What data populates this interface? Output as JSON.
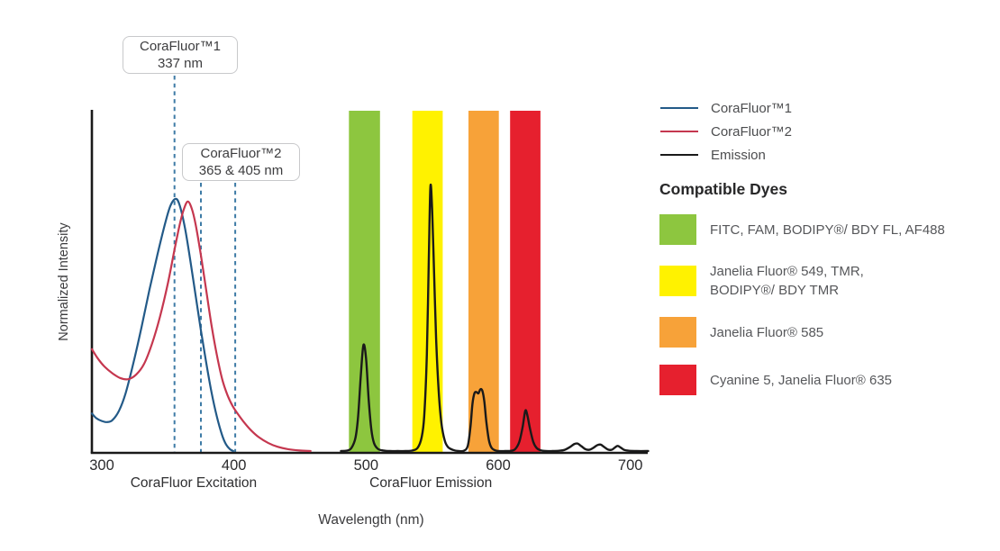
{
  "chart_data": {
    "type": "line",
    "title": "",
    "xlabel": "Wavelength (nm)",
    "ylabel": "Normalized Intensity",
    "x_ticks": [
      300,
      400,
      500,
      600,
      700
    ],
    "x_axis_extent_nm": [
      292.5,
      714
    ],
    "ylim": [
      0,
      1
    ],
    "grid": false,
    "legend_position": "right",
    "x_section_labels": [
      {
        "text": "CoraFluor Excitation",
        "center_nm": 369.5
      },
      {
        "text": "CoraFluor Emission",
        "center_nm": 549
      }
    ],
    "markers": [
      {
        "label": "337 nm",
        "wavelength_nm": 337,
        "drawn_nm": 355,
        "callout": 1
      },
      {
        "label": "365 nm",
        "wavelength_nm": 365,
        "drawn_nm": 375,
        "callout": 2
      },
      {
        "label": "405 nm",
        "wavelength_nm": 405,
        "drawn_nm": 401,
        "callout": 2
      }
    ],
    "marker_line_color": "#3e7ba6",
    "emission_filter_bands": [
      {
        "name": "green",
        "color": "#8dc63f",
        "nm_range": [
          487,
          510.5
        ]
      },
      {
        "name": "yellow",
        "color": "#fff200",
        "nm_range": [
          535,
          558
        ]
      },
      {
        "name": "orange",
        "color": "#f7a239",
        "nm_range": [
          577.5,
          600.5
        ]
      },
      {
        "name": "red",
        "color": "#e6202e",
        "nm_range": [
          609,
          632
        ]
      }
    ],
    "series": [
      {
        "name": "CoraFluor™1 excitation",
        "color": "#235a88",
        "width": 2.2,
        "points": [
          [
            292.5,
            0.14
          ],
          [
            296,
            0.122
          ],
          [
            300,
            0.112
          ],
          [
            304,
            0.108
          ],
          [
            308,
            0.115
          ],
          [
            313,
            0.15
          ],
          [
            318,
            0.215
          ],
          [
            324,
            0.33
          ],
          [
            330,
            0.46
          ],
          [
            336,
            0.6
          ],
          [
            342,
            0.73
          ],
          [
            348,
            0.85
          ],
          [
            352,
            0.915
          ],
          [
            356,
            0.94
          ],
          [
            359,
            0.915
          ],
          [
            363,
            0.83
          ],
          [
            367,
            0.71
          ],
          [
            371,
            0.58
          ],
          [
            375,
            0.45
          ],
          [
            379,
            0.33
          ],
          [
            383,
            0.22
          ],
          [
            387,
            0.13
          ],
          [
            391,
            0.06
          ],
          [
            394,
            0.025
          ],
          [
            397,
            0.007
          ],
          [
            399.5,
            0
          ]
        ]
      },
      {
        "name": "CoraFluor™2 excitation",
        "color": "#c5374f",
        "width": 2.2,
        "points": [
          [
            292.5,
            0.38
          ],
          [
            297,
            0.345
          ],
          [
            302,
            0.315
          ],
          [
            308,
            0.29
          ],
          [
            314,
            0.272
          ],
          [
            320,
            0.268
          ],
          [
            326,
            0.285
          ],
          [
            332,
            0.325
          ],
          [
            338,
            0.4
          ],
          [
            344,
            0.5
          ],
          [
            350,
            0.625
          ],
          [
            355,
            0.75
          ],
          [
            359,
            0.845
          ],
          [
            362,
            0.9
          ],
          [
            365,
            0.93
          ],
          [
            368,
            0.905
          ],
          [
            371,
            0.845
          ],
          [
            375,
            0.73
          ],
          [
            379,
            0.6
          ],
          [
            383,
            0.47
          ],
          [
            387,
            0.36
          ],
          [
            391,
            0.27
          ],
          [
            395,
            0.21
          ],
          [
            399,
            0.168
          ],
          [
            403,
            0.138
          ],
          [
            408,
            0.105
          ],
          [
            413,
            0.077
          ],
          [
            419,
            0.051
          ],
          [
            426,
            0.03
          ],
          [
            433,
            0.016
          ],
          [
            441,
            0.007
          ],
          [
            450,
            0.002
          ],
          [
            458,
            0
          ]
        ]
      },
      {
        "name": "Emission",
        "color": "#1a1a1a",
        "width": 2.4,
        "points": [
          [
            481,
            0
          ],
          [
            486,
            0.002
          ],
          [
            489,
            0.012
          ],
          [
            492,
            0.05
          ],
          [
            494,
            0.13
          ],
          [
            496,
            0.28
          ],
          [
            498,
            0.395
          ],
          [
            500,
            0.345
          ],
          [
            502,
            0.19
          ],
          [
            504,
            0.08
          ],
          [
            506,
            0.03
          ],
          [
            509,
            0.008
          ],
          [
            513,
            0.002
          ],
          [
            518,
            0
          ],
          [
            524,
            0
          ],
          [
            530,
            0
          ],
          [
            535,
            0.002
          ],
          [
            539,
            0.012
          ],
          [
            542,
            0.05
          ],
          [
            544,
            0.13
          ],
          [
            546,
            0.36
          ],
          [
            547.5,
            0.72
          ],
          [
            548.7,
            0.985
          ],
          [
            550,
            0.9
          ],
          [
            551.5,
            0.66
          ],
          [
            553,
            0.42
          ],
          [
            555,
            0.22
          ],
          [
            557,
            0.105
          ],
          [
            559.5,
            0.04
          ],
          [
            562,
            0.015
          ],
          [
            566,
            0.004
          ],
          [
            570,
            0
          ],
          [
            574,
            0.001
          ],
          [
            577,
            0.02
          ],
          [
            579,
            0.09
          ],
          [
            580.5,
            0.175
          ],
          [
            582,
            0.215
          ],
          [
            583.5,
            0.22
          ],
          [
            585,
            0.215
          ],
          [
            586.5,
            0.23
          ],
          [
            588,
            0.225
          ],
          [
            589.5,
            0.185
          ],
          [
            591,
            0.11
          ],
          [
            593,
            0.04
          ],
          [
            595,
            0.012
          ],
          [
            597.5,
            0.003
          ],
          [
            600,
            0
          ],
          [
            605,
            0
          ],
          [
            610,
            0.001
          ],
          [
            613,
            0.008
          ],
          [
            616,
            0.035
          ],
          [
            618.5,
            0.09
          ],
          [
            620.5,
            0.15
          ],
          [
            622,
            0.135
          ],
          [
            624,
            0.085
          ],
          [
            626.5,
            0.035
          ],
          [
            629,
            0.012
          ],
          [
            632,
            0.003
          ],
          [
            636,
            0
          ],
          [
            641,
            0
          ],
          [
            646,
            0.001
          ],
          [
            650,
            0.004
          ],
          [
            654,
            0.014
          ],
          [
            657.5,
            0.026
          ],
          [
            660,
            0.028
          ],
          [
            663,
            0.018
          ],
          [
            666,
            0.007
          ],
          [
            669,
            0.005
          ],
          [
            672,
            0.012
          ],
          [
            675,
            0.022
          ],
          [
            677.5,
            0.024
          ],
          [
            680,
            0.016
          ],
          [
            683,
            0.006
          ],
          [
            686,
            0.005
          ],
          [
            688.5,
            0.014
          ],
          [
            690.5,
            0.019
          ],
          [
            693,
            0.012
          ],
          [
            695.5,
            0.004
          ],
          [
            699,
            0.001
          ],
          [
            705,
            0
          ],
          [
            713.5,
            0
          ]
        ]
      }
    ]
  },
  "callouts": [
    {
      "title": "CoraFluor™1",
      "subtitle": "337 nm"
    },
    {
      "title": "CoraFluor™2",
      "subtitle": "365 & 405 nm"
    }
  ],
  "legend": {
    "items": [
      {
        "label": "CoraFluor™1",
        "color": "#235a88"
      },
      {
        "label": "CoraFluor™2",
        "color": "#c5374f"
      },
      {
        "label": "Emission",
        "color": "#1a1a1a"
      }
    ]
  },
  "compatible_dyes": {
    "heading": "Compatible Dyes",
    "items": [
      {
        "color": "#8dc63f",
        "label": "FITC, FAM, BODIPY®/ BDY FL, AF488"
      },
      {
        "color": "#fff200",
        "label": "Janelia Fluor® 549, TMR,\nBODIPY®/ BDY TMR"
      },
      {
        "color": "#f7a239",
        "label": "Janelia Fluor® 585"
      },
      {
        "color": "#e6202e",
        "label": "Cyanine 5, Janelia Fluor® 635"
      }
    ]
  }
}
